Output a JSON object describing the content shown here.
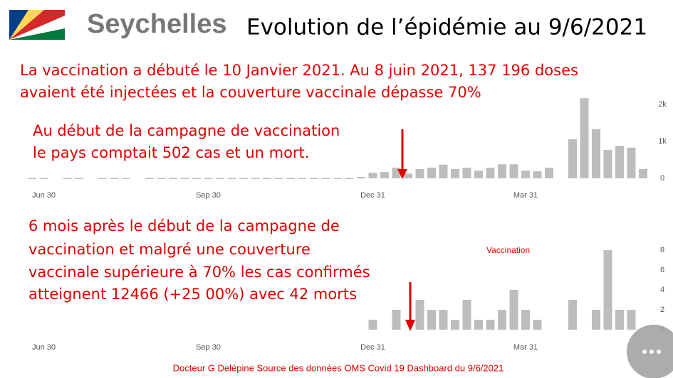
{
  "header": {
    "logo_text": "Seychelles",
    "title": "Evolution de l’épidémie au 9/6/2021"
  },
  "paragraphs": [
    "La vaccination a débuté le 10 Janvier 2021. Au   8 juin 2021, 137 196 doses",
    "avaient été injectées et la couverture vaccinale  dépasse 70%",
    "Au début de la campagne de vaccination",
    "le pays comptait 502 cas et un mort.",
    "6 mois après le début de la campagne de",
    "vaccination et malgré une couverture",
    "vaccinale supérieure à 70% les   cas confirmés",
    "atteignent 12466 (+25 00%) avec 42 morts"
  ],
  "footer": "Docteur G Delépine Source des données OMS Covid 19 Dashboard du  9/6/2021",
  "chart_data": [
    {
      "type": "bar",
      "color": "#bdbdbd",
      "categories": [
        null,
        "Jun 30",
        null,
        null,
        null,
        null,
        null,
        null,
        null,
        null,
        null,
        null,
        null,
        null,
        null,
        "Sep 30",
        null,
        null,
        null,
        null,
        null,
        null,
        null,
        null,
        null,
        null,
        null,
        null,
        null,
        "Dec 31",
        null,
        null,
        null,
        null,
        null,
        null,
        null,
        null,
        null,
        null,
        null,
        null,
        "Mar 31",
        null,
        null,
        null,
        null,
        null,
        null,
        null,
        null,
        null,
        null
      ],
      "values": [
        10,
        10,
        0,
        10,
        10,
        0,
        10,
        10,
        10,
        0,
        10,
        10,
        10,
        10,
        10,
        10,
        10,
        10,
        10,
        10,
        10,
        10,
        10,
        10,
        10,
        10,
        10,
        10,
        40,
        150,
        170,
        290,
        130,
        250,
        290,
        370,
        250,
        290,
        210,
        290,
        380,
        380,
        210,
        190,
        290,
        0,
        1060,
        2170,
        1330,
        770,
        880,
        830,
        250
      ],
      "ylim": [
        0,
        2300
      ],
      "yticks": [
        0,
        {
          "value": 1000,
          "label": "1k"
        },
        {
          "value": 2000,
          "label": "2k"
        }
      ]
    },
    {
      "type": "bar",
      "color": "#bdbdbd",
      "annotation": "Vaccination",
      "categories": [
        null,
        "Jun 30",
        null,
        null,
        null,
        null,
        null,
        null,
        null,
        null,
        null,
        null,
        null,
        null,
        null,
        "Sep 30",
        null,
        null,
        null,
        null,
        null,
        null,
        null,
        null,
        null,
        null,
        null,
        null,
        null,
        "Dec 31",
        null,
        null,
        null,
        null,
        null,
        null,
        null,
        null,
        null,
        null,
        null,
        null,
        "Mar 31",
        null,
        null,
        null,
        null,
        null,
        null,
        null,
        null,
        null,
        null
      ],
      "values": [
        0,
        0,
        0,
        0,
        0,
        0,
        0,
        0,
        0,
        0,
        0,
        0,
        0,
        0,
        0,
        0,
        0,
        0,
        0,
        0,
        0,
        0,
        0,
        0,
        0,
        0,
        0,
        0,
        0,
        1,
        0,
        2,
        0,
        3,
        2,
        2,
        1,
        3,
        1,
        1,
        2,
        4,
        2,
        1,
        0,
        0,
        3,
        0,
        2,
        8,
        2,
        2,
        0
      ],
      "ylim": [
        0,
        8.5
      ],
      "yticks": [
        0,
        2,
        4,
        6,
        8
      ]
    }
  ]
}
